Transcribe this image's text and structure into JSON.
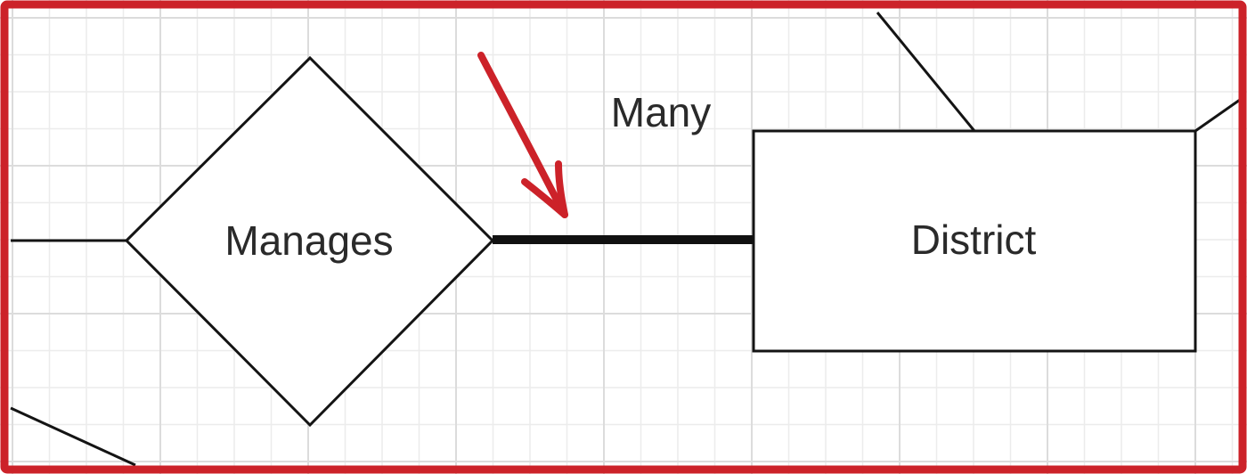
{
  "diagram": {
    "relationship": {
      "label": "Manages"
    },
    "entity": {
      "label": "District"
    },
    "cardinality": {
      "label": "Many"
    }
  },
  "colors": {
    "annotation": "#cc2229",
    "frame": "#cc2229",
    "lines": "#141414",
    "grid": "#dcdcdc"
  },
  "icons": {
    "annotation_arrow": "red-arrow-icon"
  }
}
